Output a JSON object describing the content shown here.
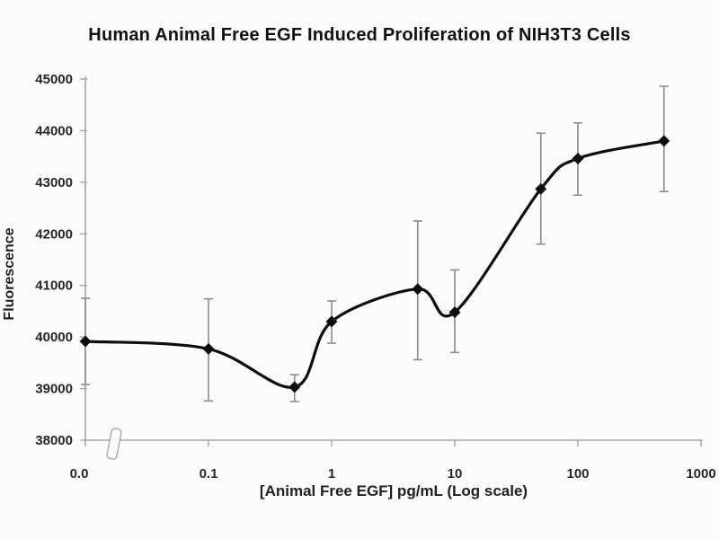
{
  "page": {
    "background": "#fcfcfc"
  },
  "chart_data": {
    "type": "line",
    "title": "Human Animal Free EGF Induced Proliferation of NIH3T3 Cells",
    "xlabel": "[Animal Free EGF] pg/mL (Log scale)",
    "ylabel": "Fluorescence",
    "x_scale": "log",
    "x_axis_break_near_zero": true,
    "ylim": [
      38000,
      45000
    ],
    "grid": false,
    "legend": false,
    "marker": "diamond",
    "error_bars": true,
    "y_ticks": [
      {
        "label": "38000",
        "value": 38000
      },
      {
        "label": "39000",
        "value": 39000
      },
      {
        "label": "40000",
        "value": 40000
      },
      {
        "label": "41000",
        "value": 41000
      },
      {
        "label": "42000",
        "value": 42000
      },
      {
        "label": "43000",
        "value": 43000
      },
      {
        "label": "44000",
        "value": 44000
      },
      {
        "label": "45000",
        "value": 45000
      }
    ],
    "x_ticks": [
      {
        "label": "0.0",
        "value": 0
      },
      {
        "label": "0.1",
        "value": 0.1
      },
      {
        "label": "1",
        "value": 1
      },
      {
        "label": "10",
        "value": 10
      },
      {
        "label": "100",
        "value": 100
      },
      {
        "label": "1000",
        "value": 1000
      }
    ],
    "points": [
      {
        "x": 0,
        "y": 39915,
        "y_low": 39080,
        "y_high": 40750
      },
      {
        "x": 0.1,
        "y": 39770,
        "y_low": 38760,
        "y_high": 40740
      },
      {
        "x": 0.5,
        "y": 39030,
        "y_low": 38750,
        "y_high": 39270
      },
      {
        "x": 1,
        "y": 40300,
        "y_low": 39880,
        "y_high": 40700
      },
      {
        "x": 5,
        "y": 40930,
        "y_low": 39560,
        "y_high": 42250
      },
      {
        "x": 10,
        "y": 40480,
        "y_low": 39700,
        "y_high": 41300
      },
      {
        "x": 50,
        "y": 42870,
        "y_low": 41800,
        "y_high": 43950
      },
      {
        "x": 100,
        "y": 43460,
        "y_low": 42750,
        "y_high": 44150
      },
      {
        "x": 500,
        "y": 43800,
        "y_low": 42820,
        "y_high": 44860
      }
    ],
    "colors": {
      "line": "#0d0d0d",
      "marker": "#0d0d0d",
      "error_bar": "#8c8c8c",
      "axis": "#a6a6a6",
      "text": "#262626",
      "title_text": "#111111"
    }
  }
}
